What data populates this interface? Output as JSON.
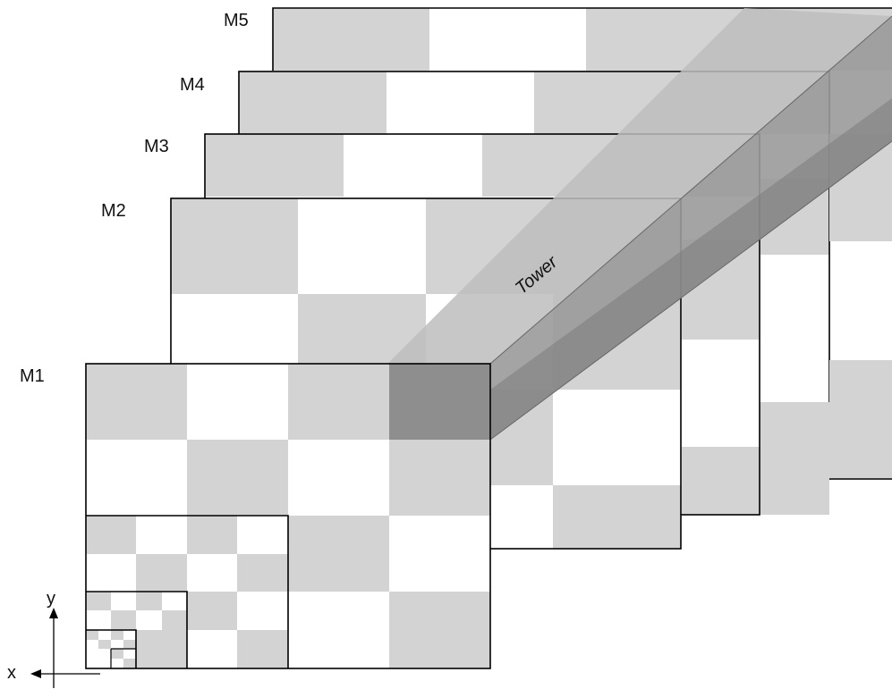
{
  "layers": [
    {
      "id": "M1",
      "label": "M1"
    },
    {
      "id": "M2",
      "label": "M2"
    },
    {
      "id": "M3",
      "label": "M3"
    },
    {
      "id": "M4",
      "label": "M4"
    },
    {
      "id": "M5",
      "label": "M5"
    }
  ],
  "tower_label": "Tower",
  "axes": {
    "x": "x",
    "y": "y"
  },
  "colors": {
    "light_cell": "#d3d3d3",
    "white_cell": "#ffffff",
    "tower_front": "#8e8e8e",
    "tower_side": "#9a9a9a",
    "tower_side_dark": "#7c7c7c",
    "tower_top": "#bdbdbd",
    "stroke": "#000000"
  }
}
